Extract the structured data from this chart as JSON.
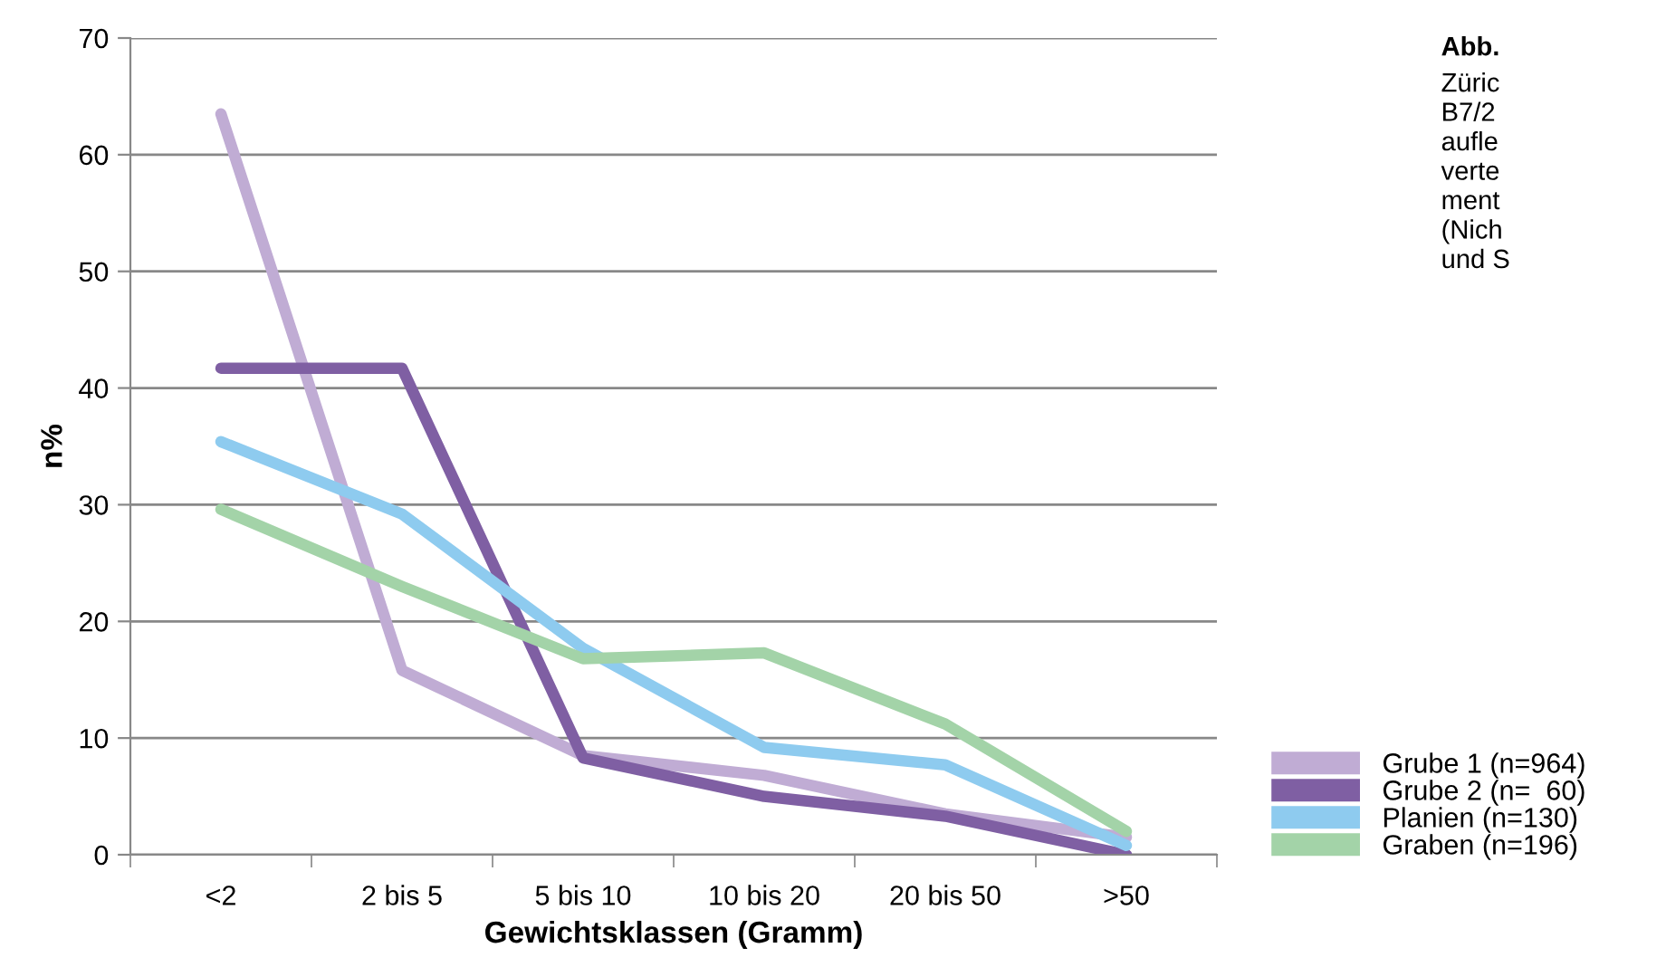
{
  "chart_data": {
    "type": "line",
    "xlabel": "Gewichtsklassen (Gramm)",
    "ylabel": "n%",
    "categories": [
      "<2",
      "2 bis 5",
      "5 bis 10",
      "10 bis 20",
      "20 bis 50",
      ">50"
    ],
    "series": [
      {
        "name": "Grube 1 (n=964)",
        "color": "#c0acd4",
        "values": [
          63.5,
          15.8,
          8.5,
          6.8,
          3.5,
          1.5
        ]
      },
      {
        "name": "Grube 2 (n=  60)",
        "color": "#7f5fa3",
        "values": [
          41.7,
          41.7,
          8.3,
          5.0,
          3.3,
          0
        ]
      },
      {
        "name": "Planien (n=130)",
        "color": "#8ecbef",
        "values": [
          35.4,
          29.2,
          17.7,
          9.2,
          7.7,
          0.8
        ]
      },
      {
        "name": "Graben (n=196)",
        "color": "#a3d3a8",
        "values": [
          29.6,
          23.0,
          16.8,
          17.3,
          11.2,
          2.0
        ]
      }
    ],
    "ylim": [
      0,
      70
    ],
    "yticks": [
      0,
      10,
      20,
      30,
      40,
      50,
      60,
      70
    ],
    "grid": "y",
    "legend": "right",
    "marker": "none",
    "line_style": "solid",
    "annotations": [
      "Abb.",
      "Züric\nB7/2\naufle\nverte\nment\n(Nich\nund S"
    ]
  }
}
